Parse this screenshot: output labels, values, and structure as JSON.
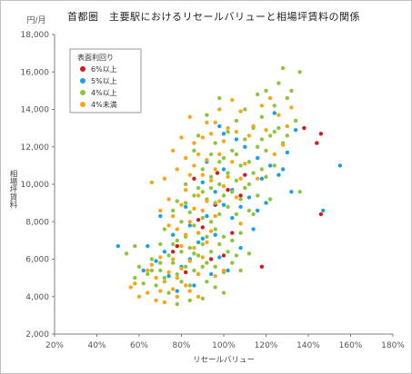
{
  "chart_data": {
    "type": "scatter",
    "title": "首都圏　主要駅におけるリセールバリューと相場坪賃料の関係",
    "xlabel": "リセールバリュー",
    "ylabel": "相場坪賃料",
    "y_unit": "円/月",
    "xlim": [
      20,
      180
    ],
    "ylim": [
      2000,
      18000
    ],
    "x_ticks": [
      "20%",
      "40%",
      "60%",
      "80%",
      "100%",
      "120%",
      "140%",
      "160%",
      "180%"
    ],
    "y_ticks": [
      "2,000",
      "4,000",
      "6,000",
      "8,000",
      "10,000",
      "12,000",
      "14,000",
      "16,000",
      "18,000"
    ],
    "grid": false,
    "legend": {
      "title": "表面利回り",
      "position": "top-left"
    },
    "series": [
      {
        "name": "6%以上",
        "color": "#d7191c",
        "points": [
          [
            146,
            12700
          ],
          [
            138,
            13000
          ],
          [
            144,
            12200
          ],
          [
            146,
            8400
          ],
          [
            118,
            5600
          ],
          [
            102,
            9700
          ],
          [
            97,
            10600
          ],
          [
            78,
            6700
          ],
          [
            96,
            8900
          ],
          [
            90,
            7700
          ],
          [
            100,
            6200
          ],
          [
            82,
            5300
          ],
          [
            110,
            10500
          ],
          [
            86,
            10300
          ],
          [
            76,
            6400
          ],
          [
            108,
            9400
          ],
          [
            88,
            8100
          ],
          [
            104,
            7400
          ],
          [
            94,
            6000
          ]
        ]
      },
      {
        "name": "5%以上",
        "color": "#1ba1e2",
        "points": [
          [
            50,
            6700
          ],
          [
            155,
            11000
          ],
          [
            147,
            8600
          ],
          [
            130,
            11700
          ],
          [
            134,
            12900
          ],
          [
            124,
            13800
          ],
          [
            118,
            10300
          ],
          [
            112,
            9300
          ],
          [
            108,
            8800
          ],
          [
            104,
            9700
          ],
          [
            100,
            10800
          ],
          [
            96,
            7300
          ],
          [
            92,
            8300
          ],
          [
            88,
            6900
          ],
          [
            84,
            6000
          ],
          [
            80,
            5600
          ],
          [
            76,
            7300
          ],
          [
            72,
            6400
          ],
          [
            68,
            5900
          ],
          [
            64,
            6700
          ],
          [
            110,
            12000
          ],
          [
            116,
            11400
          ],
          [
            106,
            12400
          ],
          [
            98,
            6100
          ],
          [
            102,
            5400
          ],
          [
            94,
            5200
          ],
          [
            86,
            4600
          ],
          [
            78,
            4300
          ],
          [
            90,
            10100
          ],
          [
            114,
            7600
          ],
          [
            120,
            9000
          ],
          [
            126,
            10500
          ],
          [
            100,
            12700
          ],
          [
            84,
            7800
          ],
          [
            74,
            5100
          ],
          [
            96,
            9600
          ],
          [
            108,
            6600
          ],
          [
            82,
            8800
          ],
          [
            92,
            11200
          ],
          [
            104,
            8200
          ],
          [
            70,
            8300
          ],
          [
            88,
            5200
          ],
          [
            116,
            8600
          ],
          [
            122,
            11000
          ],
          [
            98,
            13100
          ],
          [
            62,
            5400
          ],
          [
            90,
            7100
          ],
          [
            100,
            8900
          ],
          [
            132,
            9600
          ],
          [
            128,
            10800
          ]
        ]
      },
      {
        "name": "4%以上",
        "color": "#8cc63f",
        "points": [
          [
            54,
            6300
          ],
          [
            58,
            6700
          ],
          [
            60,
            5600
          ],
          [
            62,
            4700
          ],
          [
            64,
            5200
          ],
          [
            66,
            6000
          ],
          [
            68,
            4600
          ],
          [
            70,
            5400
          ],
          [
            70,
            6800
          ],
          [
            72,
            5000
          ],
          [
            72,
            7600
          ],
          [
            74,
            6200
          ],
          [
            74,
            4200
          ],
          [
            76,
            5800
          ],
          [
            76,
            8600
          ],
          [
            78,
            5200
          ],
          [
            78,
            7000
          ],
          [
            78,
            9100
          ],
          [
            80,
            6400
          ],
          [
            80,
            4800
          ],
          [
            80,
            8000
          ],
          [
            82,
            5600
          ],
          [
            82,
            7200
          ],
          [
            82,
            10000
          ],
          [
            84,
            6600
          ],
          [
            84,
            8500
          ],
          [
            84,
            4600
          ],
          [
            86,
            5400
          ],
          [
            86,
            7800
          ],
          [
            86,
            9400
          ],
          [
            86,
            11800
          ],
          [
            88,
            6200
          ],
          [
            88,
            7400
          ],
          [
            88,
            9800
          ],
          [
            88,
            12600
          ],
          [
            90,
            5600
          ],
          [
            90,
            8200
          ],
          [
            90,
            10800
          ],
          [
            90,
            6800
          ],
          [
            92,
            7200
          ],
          [
            92,
            9200
          ],
          [
            92,
            4800
          ],
          [
            92,
            13700
          ],
          [
            94,
            8000
          ],
          [
            94,
            10400
          ],
          [
            94,
            6400
          ],
          [
            94,
            11600
          ],
          [
            96,
            7600
          ],
          [
            96,
            9000
          ],
          [
            96,
            5600
          ],
          [
            96,
            12200
          ],
          [
            98,
            8400
          ],
          [
            98,
            10000
          ],
          [
            98,
            6800
          ],
          [
            98,
            14600
          ],
          [
            100,
            7200
          ],
          [
            100,
            9400
          ],
          [
            100,
            11400
          ],
          [
            100,
            4200
          ],
          [
            102,
            8800
          ],
          [
            102,
            10600
          ],
          [
            102,
            6400
          ],
          [
            102,
            12800
          ],
          [
            104,
            9600
          ],
          [
            104,
            11800
          ],
          [
            104,
            7000
          ],
          [
            106,
            8400
          ],
          [
            106,
            10200
          ],
          [
            106,
            13400
          ],
          [
            108,
            9200
          ],
          [
            108,
            11000
          ],
          [
            108,
            7400
          ],
          [
            110,
            9800
          ],
          [
            110,
            12400
          ],
          [
            110,
            14000
          ],
          [
            112,
            8600
          ],
          [
            112,
            11200
          ],
          [
            112,
            6300
          ],
          [
            114,
            10600
          ],
          [
            114,
            13000
          ],
          [
            116,
            9400
          ],
          [
            116,
            12000
          ],
          [
            116,
            14800
          ],
          [
            118,
            10800
          ],
          [
            118,
            13600
          ],
          [
            120,
            11800
          ],
          [
            120,
            15000
          ],
          [
            122,
            12600
          ],
          [
            122,
            9200
          ],
          [
            124,
            14200
          ],
          [
            124,
            11000
          ],
          [
            126,
            15400
          ],
          [
            126,
            13000
          ],
          [
            128,
            16200
          ],
          [
            128,
            12200
          ],
          [
            130,
            14600
          ],
          [
            132,
            15000
          ],
          [
            134,
            13400
          ],
          [
            136,
            16000
          ],
          [
            136,
            9600
          ],
          [
            84,
            3800
          ],
          [
            78,
            3600
          ],
          [
            90,
            3900
          ],
          [
            96,
            4500
          ],
          [
            100,
            5300
          ],
          [
            104,
            5800
          ],
          [
            106,
            6200
          ],
          [
            108,
            5400
          ],
          [
            112,
            10000
          ],
          [
            114,
            8400
          ],
          [
            90,
            9600
          ],
          [
            86,
            6300
          ],
          [
            82,
            9000
          ],
          [
            76,
            6800
          ],
          [
            70,
            5800
          ],
          [
            66,
            5400
          ],
          [
            58,
            5000
          ],
          [
            92,
            5800
          ],
          [
            94,
            9800
          ],
          [
            98,
            11200
          ],
          [
            106,
            11600
          ],
          [
            118,
            12400
          ],
          [
            124,
            12800
          ],
          [
            130,
            12600
          ],
          [
            120,
            10400
          ]
        ]
      },
      {
        "name": "4%未満",
        "color": "#f7a619",
        "points": [
          [
            56,
            4500
          ],
          [
            58,
            4700
          ],
          [
            60,
            4000
          ],
          [
            64,
            5400
          ],
          [
            66,
            5700
          ],
          [
            68,
            3800
          ],
          [
            70,
            4300
          ],
          [
            70,
            6100
          ],
          [
            72,
            4800
          ],
          [
            72,
            10300
          ],
          [
            74,
            5300
          ],
          [
            74,
            7800
          ],
          [
            74,
            9200
          ],
          [
            76,
            4400
          ],
          [
            76,
            6000
          ],
          [
            76,
            8300
          ],
          [
            78,
            5000
          ],
          [
            78,
            7600
          ],
          [
            78,
            10800
          ],
          [
            80,
            5500
          ],
          [
            80,
            6700
          ],
          [
            80,
            8900
          ],
          [
            80,
            12500
          ],
          [
            82,
            4600
          ],
          [
            82,
            7300
          ],
          [
            82,
            9700
          ],
          [
            82,
            11400
          ],
          [
            84,
            5900
          ],
          [
            84,
            8000
          ],
          [
            84,
            10500
          ],
          [
            84,
            13600
          ],
          [
            86,
            6600
          ],
          [
            86,
            8700
          ],
          [
            86,
            11000
          ],
          [
            86,
            12200
          ],
          [
            88,
            5200
          ],
          [
            88,
            7400
          ],
          [
            88,
            9400
          ],
          [
            88,
            11600
          ],
          [
            90,
            6100
          ],
          [
            90,
            8600
          ],
          [
            90,
            10500
          ],
          [
            90,
            12500
          ],
          [
            92,
            6900
          ],
          [
            92,
            9100
          ],
          [
            92,
            11300
          ],
          [
            92,
            13300
          ],
          [
            94,
            7500
          ],
          [
            94,
            10200
          ],
          [
            94,
            12700
          ],
          [
            96,
            8300
          ],
          [
            96,
            10800
          ],
          [
            96,
            13300
          ],
          [
            98,
            9100
          ],
          [
            98,
            11600
          ],
          [
            98,
            14000
          ],
          [
            100,
            9900
          ],
          [
            100,
            12300
          ],
          [
            102,
            10400
          ],
          [
            102,
            13000
          ],
          [
            104,
            11200
          ],
          [
            104,
            14500
          ],
          [
            106,
            9300
          ],
          [
            106,
            12800
          ],
          [
            108,
            10300
          ],
          [
            108,
            13900
          ],
          [
            110,
            11100
          ],
          [
            112,
            12600
          ],
          [
            114,
            13100
          ],
          [
            116,
            10300
          ],
          [
            118,
            14200
          ],
          [
            120,
            12900
          ],
          [
            122,
            14600
          ],
          [
            124,
            11600
          ],
          [
            126,
            13700
          ],
          [
            128,
            12100
          ],
          [
            130,
            13100
          ],
          [
            132,
            14100
          ],
          [
            64,
            4200
          ],
          [
            68,
            5000
          ],
          [
            72,
            3700
          ],
          [
            78,
            4000
          ],
          [
            84,
            4300
          ],
          [
            88,
            4000
          ],
          [
            96,
            5100
          ],
          [
            100,
            5400
          ],
          [
            108,
            7900
          ],
          [
            66,
            10100
          ],
          [
            70,
            8600
          ],
          [
            76,
            11800
          ]
        ]
      }
    ]
  }
}
